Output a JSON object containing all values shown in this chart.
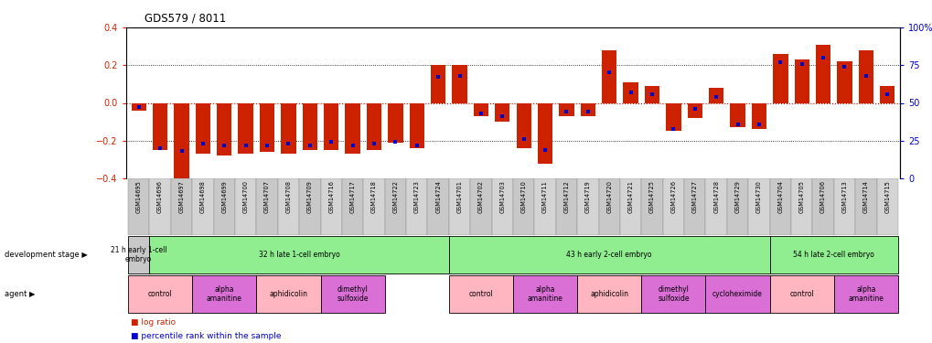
{
  "title": "GDS579 / 8011",
  "samples": [
    "GSM14695",
    "GSM14696",
    "GSM14697",
    "GSM14698",
    "GSM14699",
    "GSM14700",
    "GSM14707",
    "GSM14708",
    "GSM14709",
    "GSM14716",
    "GSM14717",
    "GSM14718",
    "GSM14722",
    "GSM14723",
    "GSM14724",
    "GSM14701",
    "GSM14702",
    "GSM14703",
    "GSM14710",
    "GSM14711",
    "GSM14712",
    "GSM14719",
    "GSM14720",
    "GSM14721",
    "GSM14725",
    "GSM14726",
    "GSM14727",
    "GSM14728",
    "GSM14729",
    "GSM14730",
    "GSM14704",
    "GSM14705",
    "GSM14706",
    "GSM14713",
    "GSM14714",
    "GSM14715"
  ],
  "log_ratio": [
    -0.04,
    -0.25,
    -0.4,
    -0.27,
    -0.28,
    -0.27,
    -0.26,
    -0.27,
    -0.25,
    -0.25,
    -0.27,
    -0.25,
    -0.21,
    -0.24,
    0.2,
    0.2,
    -0.07,
    -0.1,
    -0.24,
    -0.32,
    -0.07,
    -0.07,
    0.28,
    0.11,
    0.09,
    -0.15,
    -0.08,
    0.08,
    -0.13,
    -0.14,
    0.26,
    0.23,
    0.31,
    0.22,
    0.28,
    0.09
  ],
  "percentile": [
    47,
    20,
    18,
    23,
    22,
    22,
    22,
    23,
    22,
    24,
    22,
    23,
    24,
    22,
    67,
    68,
    43,
    41,
    26,
    19,
    44,
    44,
    70,
    57,
    56,
    33,
    46,
    54,
    36,
    36,
    77,
    76,
    80,
    74,
    68,
    56
  ],
  "ylim_left": [
    -0.4,
    0.4
  ],
  "ylim_right": [
    0,
    100
  ],
  "bar_color": "#cc2200",
  "dot_color": "#0000cc",
  "zero_line_color": "#cc0000",
  "right_axis_color": "#0000cc",
  "bg_color": "#ffffff",
  "dev_groups": [
    {
      "label": "21 h early 1-cell\nembryo",
      "start": 0,
      "end": 1,
      "color": "#c8c8c8"
    },
    {
      "label": "32 h late 1-cell embryo",
      "start": 1,
      "end": 15,
      "color": "#90EE90"
    },
    {
      "label": "43 h early 2-cell embryo",
      "start": 15,
      "end": 30,
      "color": "#90EE90"
    },
    {
      "label": "54 h late 2-cell embryo",
      "start": 30,
      "end": 36,
      "color": "#90EE90"
    }
  ],
  "agent_groups": [
    {
      "label": "control",
      "start": 0,
      "end": 3,
      "color": "#FFB6C1"
    },
    {
      "label": "alpha\namanitine",
      "start": 3,
      "end": 6,
      "color": "#DA70D6"
    },
    {
      "label": "aphidicolin",
      "start": 6,
      "end": 9,
      "color": "#FFB6C1"
    },
    {
      "label": "dimethyl\nsulfoxide",
      "start": 9,
      "end": 12,
      "color": "#DA70D6"
    },
    {
      "label": "control",
      "start": 15,
      "end": 18,
      "color": "#FFB6C1"
    },
    {
      "label": "alpha\namanitine",
      "start": 18,
      "end": 21,
      "color": "#DA70D6"
    },
    {
      "label": "aphidicolin",
      "start": 21,
      "end": 24,
      "color": "#FFB6C1"
    },
    {
      "label": "dimethyl\nsulfoxide",
      "start": 24,
      "end": 27,
      "color": "#DA70D6"
    },
    {
      "label": "cycloheximide",
      "start": 27,
      "end": 30,
      "color": "#DA70D6"
    },
    {
      "label": "control",
      "start": 30,
      "end": 33,
      "color": "#FFB6C1"
    },
    {
      "label": "alpha\namanitine",
      "start": 33,
      "end": 36,
      "color": "#DA70D6"
    }
  ]
}
